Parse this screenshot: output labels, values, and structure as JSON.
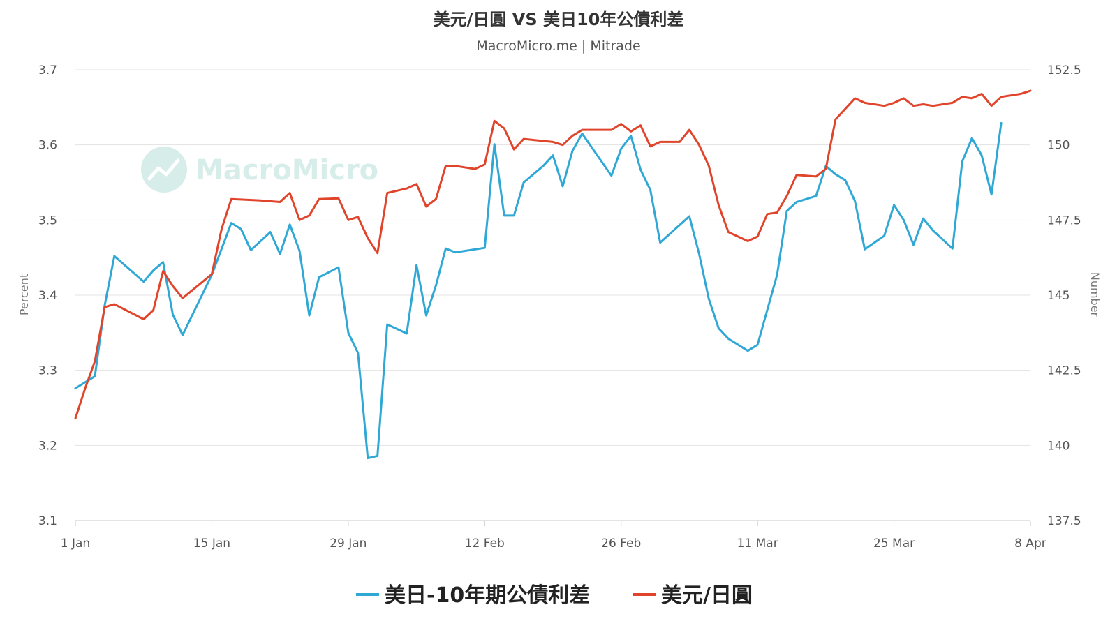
{
  "colors": {
    "spread": "#2fa8d5",
    "usdjpy": "#e0452c",
    "grid": "#e3e3e3",
    "watermark": "#d7ede9"
  },
  "watermark": {
    "text": "MacroMicro"
  },
  "chart_data": {
    "type": "line",
    "title": "美元/日圓 VS 美日10年公債利差",
    "subtitle": "MacroMicro.me | Mitrade",
    "y_left": {
      "label": "Percent",
      "ticks": [
        "3.7",
        "3.6",
        "3.5",
        "3.4",
        "3.3",
        "3.2",
        "3.1"
      ],
      "min": 3.1,
      "max": 3.7
    },
    "y_right": {
      "label": "Number",
      "ticks": [
        "152.5",
        "150",
        "147.5",
        "145",
        "142.5",
        "140",
        "137.5"
      ],
      "min": 137.5,
      "max": 152.5
    },
    "x_axis": {
      "ticks": [
        "1 Jan",
        "15 Jan",
        "29 Jan",
        "12 Feb",
        "26 Feb",
        "11 Mar",
        "25 Mar",
        "8 Apr"
      ],
      "tick_days": [
        0,
        14,
        28,
        42,
        56,
        70,
        84,
        98
      ]
    },
    "grid": "horizontal",
    "legend_position": "bottom",
    "series": [
      {
        "name": "美日-10年期公債利差",
        "axis": "left",
        "points": [
          [
            0,
            3.276
          ],
          [
            2,
            3.292
          ],
          [
            3,
            3.386
          ],
          [
            4,
            3.452
          ],
          [
            7,
            3.418
          ],
          [
            8,
            3.433
          ],
          [
            9,
            3.444
          ],
          [
            10,
            3.374
          ],
          [
            11,
            3.347
          ],
          [
            14,
            3.427
          ],
          [
            16,
            3.496
          ],
          [
            17,
            3.488
          ],
          [
            18,
            3.46
          ],
          [
            20,
            3.484
          ],
          [
            21,
            3.455
          ],
          [
            22,
            3.494
          ],
          [
            23,
            3.459
          ],
          [
            24,
            3.373
          ],
          [
            25,
            3.424
          ],
          [
            27,
            3.437
          ],
          [
            28,
            3.35
          ],
          [
            29,
            3.323
          ],
          [
            30,
            3.183
          ],
          [
            31,
            3.186
          ],
          [
            32,
            3.361
          ],
          [
            34,
            3.349
          ],
          [
            35,
            3.44
          ],
          [
            36,
            3.373
          ],
          [
            37,
            3.413
          ],
          [
            38,
            3.462
          ],
          [
            39,
            3.457
          ],
          [
            42,
            3.463
          ],
          [
            43,
            3.601
          ],
          [
            44,
            3.506
          ],
          [
            45,
            3.506
          ],
          [
            46,
            3.55
          ],
          [
            48,
            3.572
          ],
          [
            49,
            3.586
          ],
          [
            50,
            3.545
          ],
          [
            51,
            3.592
          ],
          [
            52,
            3.615
          ],
          [
            55,
            3.559
          ],
          [
            56,
            3.595
          ],
          [
            57,
            3.612
          ],
          [
            58,
            3.567
          ],
          [
            59,
            3.54
          ],
          [
            60,
            3.47
          ],
          [
            63,
            3.505
          ],
          [
            64,
            3.455
          ],
          [
            65,
            3.395
          ],
          [
            66,
            3.356
          ],
          [
            67,
            3.342
          ],
          [
            69,
            3.326
          ],
          [
            70,
            3.334
          ],
          [
            72,
            3.427
          ],
          [
            73,
            3.512
          ],
          [
            74,
            3.524
          ],
          [
            76,
            3.532
          ],
          [
            77,
            3.572
          ],
          [
            78,
            3.561
          ],
          [
            79,
            3.553
          ],
          [
            80,
            3.525
          ],
          [
            81,
            3.461
          ],
          [
            83,
            3.479
          ],
          [
            84,
            3.52
          ],
          [
            85,
            3.5
          ],
          [
            86,
            3.467
          ],
          [
            87,
            3.502
          ],
          [
            88,
            3.486
          ],
          [
            90,
            3.462
          ],
          [
            91,
            3.578
          ],
          [
            92,
            3.609
          ],
          [
            93,
            3.586
          ],
          [
            94,
            3.534
          ],
          [
            95,
            3.629
          ]
        ]
      },
      {
        "name": "美元/日圓",
        "axis": "right",
        "points": [
          [
            0,
            140.9
          ],
          [
            1,
            141.9
          ],
          [
            2,
            142.8
          ],
          [
            3,
            144.6
          ],
          [
            4,
            144.7
          ],
          [
            7,
            144.2
          ],
          [
            8,
            144.5
          ],
          [
            9,
            145.8
          ],
          [
            10,
            145.3
          ],
          [
            11,
            144.9
          ],
          [
            14,
            145.7
          ],
          [
            15,
            147.2
          ],
          [
            16,
            148.2
          ],
          [
            19,
            148.15
          ],
          [
            21,
            148.1
          ],
          [
            22,
            148.4
          ],
          [
            23,
            147.5
          ],
          [
            24,
            147.65
          ],
          [
            25,
            148.2
          ],
          [
            27,
            148.22
          ],
          [
            28,
            147.5
          ],
          [
            29,
            147.6
          ],
          [
            30,
            146.9
          ],
          [
            31,
            146.4
          ],
          [
            32,
            148.4
          ],
          [
            34,
            148.55
          ],
          [
            35,
            148.7
          ],
          [
            36,
            147.95
          ],
          [
            37,
            148.2
          ],
          [
            38,
            149.3
          ],
          [
            39,
            149.3
          ],
          [
            41,
            149.2
          ],
          [
            42,
            149.35
          ],
          [
            43,
            150.8
          ],
          [
            44,
            150.55
          ],
          [
            45,
            149.85
          ],
          [
            46,
            150.2
          ],
          [
            49,
            150.1
          ],
          [
            50,
            150.0
          ],
          [
            51,
            150.3
          ],
          [
            52,
            150.5
          ],
          [
            55,
            150.5
          ],
          [
            56,
            150.7
          ],
          [
            57,
            150.45
          ],
          [
            58,
            150.65
          ],
          [
            59,
            149.95
          ],
          [
            60,
            150.1
          ],
          [
            62,
            150.1
          ],
          [
            63,
            150.5
          ],
          [
            64,
            150.0
          ],
          [
            65,
            149.3
          ],
          [
            66,
            148.0
          ],
          [
            67,
            147.1
          ],
          [
            69,
            146.8
          ],
          [
            70,
            146.95
          ],
          [
            71,
            147.7
          ],
          [
            72,
            147.75
          ],
          [
            73,
            148.3
          ],
          [
            74,
            149.0
          ],
          [
            76,
            148.95
          ],
          [
            77,
            149.2
          ],
          [
            78,
            150.85
          ],
          [
            80,
            151.55
          ],
          [
            81,
            151.4
          ],
          [
            83,
            151.3
          ],
          [
            84,
            151.4
          ],
          [
            85,
            151.55
          ],
          [
            86,
            151.3
          ],
          [
            87,
            151.35
          ],
          [
            88,
            151.3
          ],
          [
            90,
            151.4
          ],
          [
            91,
            151.6
          ],
          [
            92,
            151.55
          ],
          [
            93,
            151.7
          ],
          [
            94,
            151.3
          ],
          [
            95,
            151.6
          ],
          [
            97,
            151.7
          ],
          [
            98,
            151.8
          ]
        ]
      }
    ]
  }
}
